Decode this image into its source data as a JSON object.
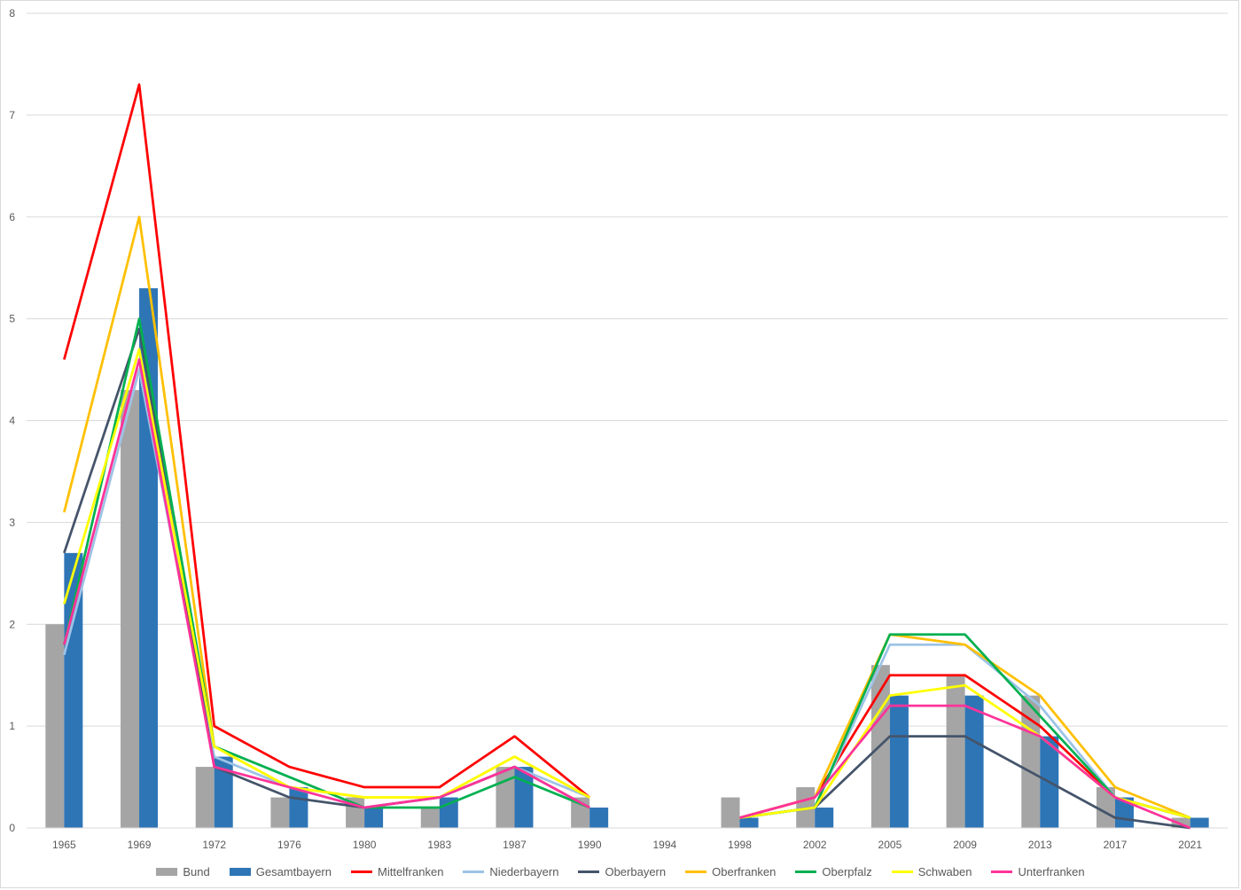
{
  "chart_data": {
    "type": "bar",
    "categories": [
      "1965",
      "1969",
      "1972",
      "1976",
      "1980",
      "1983",
      "1987",
      "1990",
      "1994",
      "1998",
      "2002",
      "2005",
      "2009",
      "2013",
      "2017",
      "2021"
    ],
    "ylim": [
      0,
      8
    ],
    "yticks": [
      0,
      1,
      2,
      3,
      4,
      5,
      6,
      7,
      8
    ],
    "grid": true,
    "legend_position": "bottom",
    "bar_series": [
      {
        "name": "Bund",
        "color": "#a5a5a5",
        "values": [
          2.0,
          4.3,
          0.6,
          0.3,
          0.3,
          0.2,
          0.6,
          0.3,
          null,
          0.3,
          0.4,
          1.6,
          1.5,
          1.3,
          0.4,
          0.1
        ]
      },
      {
        "name": "Gesamtbayern",
        "color": "#2e75b6",
        "values": [
          2.7,
          5.3,
          0.7,
          0.4,
          0.2,
          0.3,
          0.6,
          0.2,
          null,
          0.1,
          0.2,
          1.3,
          1.3,
          0.9,
          0.3,
          0.1
        ]
      }
    ],
    "line_series": [
      {
        "name": "Mittelfranken",
        "color": "#ff0000",
        "values": [
          4.6,
          7.3,
          1.0,
          0.6,
          0.4,
          0.4,
          0.9,
          0.3,
          null,
          0.1,
          0.3,
          1.5,
          1.5,
          1.0,
          0.3,
          0.1
        ]
      },
      {
        "name": "Niederbayern",
        "color": "#9dc3e6",
        "values": [
          1.7,
          4.5,
          0.7,
          0.4,
          0.2,
          0.3,
          0.6,
          0.3,
          null,
          0.1,
          0.2,
          1.8,
          1.8,
          1.2,
          0.3,
          0.1
        ]
      },
      {
        "name": "Oberbayern",
        "color": "#44546a",
        "values": [
          2.7,
          4.9,
          0.6,
          0.3,
          0.2,
          0.3,
          0.6,
          0.2,
          null,
          0.1,
          0.2,
          0.9,
          0.9,
          0.5,
          0.1,
          0.0
        ]
      },
      {
        "name": "Oberfranken",
        "color": "#ffc000",
        "values": [
          3.1,
          6.0,
          0.8,
          0.4,
          0.3,
          0.3,
          0.7,
          0.3,
          null,
          0.1,
          0.3,
          1.9,
          1.8,
          1.3,
          0.4,
          0.1
        ]
      },
      {
        "name": "Oberpfalz",
        "color": "#00b050",
        "values": [
          1.8,
          5.0,
          0.8,
          0.5,
          0.2,
          0.2,
          0.5,
          0.2,
          null,
          0.1,
          0.2,
          1.9,
          1.9,
          1.1,
          0.3,
          0.1
        ]
      },
      {
        "name": "Schwaben",
        "color": "#ffff00",
        "values": [
          2.2,
          4.7,
          0.8,
          0.4,
          0.3,
          0.3,
          0.7,
          0.3,
          null,
          0.1,
          0.2,
          1.3,
          1.4,
          0.9,
          0.3,
          0.1
        ]
      },
      {
        "name": "Unterfranken",
        "color": "#ff3399",
        "values": [
          1.8,
          4.6,
          0.6,
          0.4,
          0.2,
          0.3,
          0.6,
          0.2,
          null,
          0.1,
          0.3,
          1.2,
          1.2,
          0.9,
          0.3,
          0.0
        ]
      }
    ]
  }
}
